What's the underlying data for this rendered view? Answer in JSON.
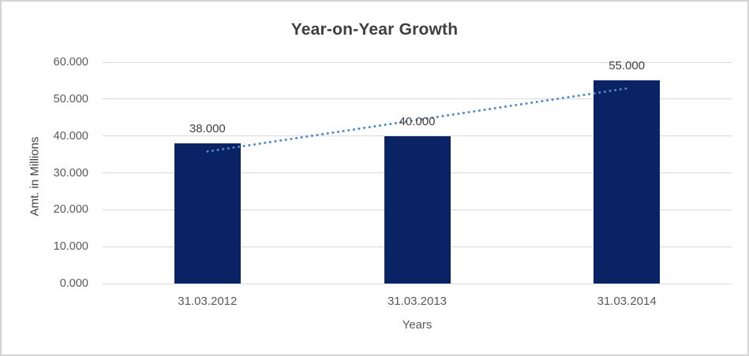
{
  "chart_data": {
    "type": "bar",
    "title": "Year-on-Year Growth",
    "categories": [
      "31.03.2012",
      "31.03.2013",
      "31.03.2014"
    ],
    "values": [
      38,
      40,
      55
    ],
    "data_labels": [
      "38.000",
      "40.000",
      "55.000"
    ],
    "xlabel": "Years",
    "ylabel": "Amt. in Millions",
    "ylim": [
      0,
      60
    ],
    "ytick_step": 10,
    "ytick_labels": [
      "0.000",
      "10.000",
      "20.000",
      "30.000",
      "40.000",
      "50.000",
      "60.000"
    ],
    "grid": true,
    "legend": "none",
    "bar_color": "#092365",
    "gridline_color": "#d9d9d9",
    "trendline": {
      "type": "linear",
      "style": "dotted",
      "color": "#4e88cc",
      "start_value": 35.8,
      "end_value": 52.9
    }
  }
}
